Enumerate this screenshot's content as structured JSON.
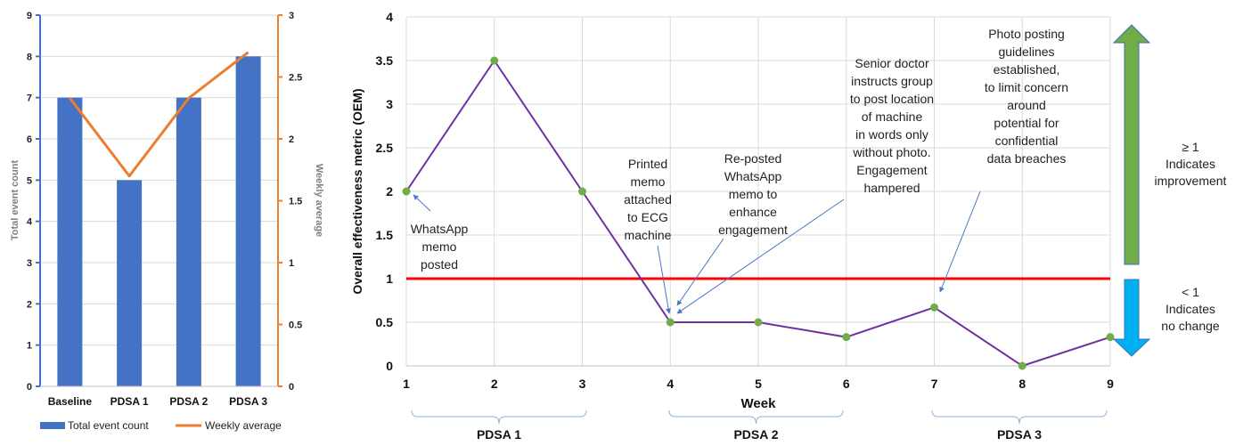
{
  "chart_data": [
    {
      "type": "bar",
      "categories": [
        "Baseline",
        "PDSA 1",
        "PDSA 2",
        "PDSA 3"
      ],
      "series": [
        {
          "name": "Total event count",
          "kind": "bar",
          "axis": "left",
          "values": [
            7,
            5,
            7,
            8
          ],
          "color": "#4472C4"
        },
        {
          "name": "Weekly average",
          "kind": "line",
          "axis": "right",
          "values": [
            2.33,
            1.7,
            2.33,
            2.7
          ],
          "color": "#ED7D31"
        }
      ],
      "ylabel": "Total event count",
      "y2label": "Weekly average",
      "ylim": [
        0,
        9
      ],
      "y2lim": [
        0,
        3
      ],
      "yticks": [
        "0",
        "1",
        "2",
        "3",
        "4",
        "5",
        "6",
        "7",
        "8",
        "9"
      ],
      "y2ticks": [
        "0",
        "0.5",
        "1",
        "1.5",
        "2",
        "2.5",
        "3"
      ],
      "grid": true,
      "legend": "bottom",
      "legend_labels": [
        "Total event count",
        "Weekly average"
      ]
    },
    {
      "type": "line",
      "x": [
        1,
        2,
        3,
        4,
        5,
        6,
        7,
        8,
        9
      ],
      "y": [
        2,
        3.5,
        2,
        0.5,
        0.5,
        0.33,
        0.67,
        0,
        0.33
      ],
      "line_color": "#7030A0",
      "marker_color": "#70AD47",
      "xlabel": "Week",
      "ylabel": "Overall effectiveness metric (OEM)",
      "xlim": [
        1,
        9
      ],
      "ylim": [
        0,
        4
      ],
      "xticks": [
        "1",
        "2",
        "3",
        "4",
        "5",
        "6",
        "7",
        "8",
        "9"
      ],
      "yticks": [
        "0",
        "0.5",
        "1",
        "1.5",
        "2",
        "2.5",
        "3",
        "3.5",
        "4"
      ],
      "reference_line": {
        "y": 1,
        "color": "#FF0000"
      },
      "grid": true,
      "phases": [
        {
          "label": "PDSA 1",
          "from": 1,
          "to": 3
        },
        {
          "label": "PDSA 2",
          "from": 4,
          "to": 6
        },
        {
          "label": "PDSA 3",
          "from": 7,
          "to": 9
        }
      ],
      "annotations": [
        {
          "lines": [
            "WhatsApp",
            "memo",
            "posted"
          ]
        },
        {
          "lines": [
            "Printed",
            "memo",
            "attached",
            "to ECG",
            "machine"
          ]
        },
        {
          "lines": [
            "Re-posted",
            "WhatsApp",
            "memo to",
            "enhance",
            "engagement"
          ]
        },
        {
          "lines": [
            "Senior doctor",
            "instructs group",
            "to post location",
            "of machine",
            "in words only",
            "without photo.",
            "Engagement",
            "hampered"
          ]
        },
        {
          "lines": [
            "Photo posting",
            "guidelines",
            "established,",
            "to limit concern",
            "around",
            "potential for",
            "confidential",
            "data breaches"
          ]
        }
      ],
      "indicators": [
        {
          "lines": [
            "≥ 1",
            "Indicates",
            "improvement"
          ],
          "color": "#70AD47"
        },
        {
          "lines": [
            "< 1",
            "Indicates",
            "no change"
          ],
          "color": "#00B0F0"
        }
      ]
    }
  ]
}
